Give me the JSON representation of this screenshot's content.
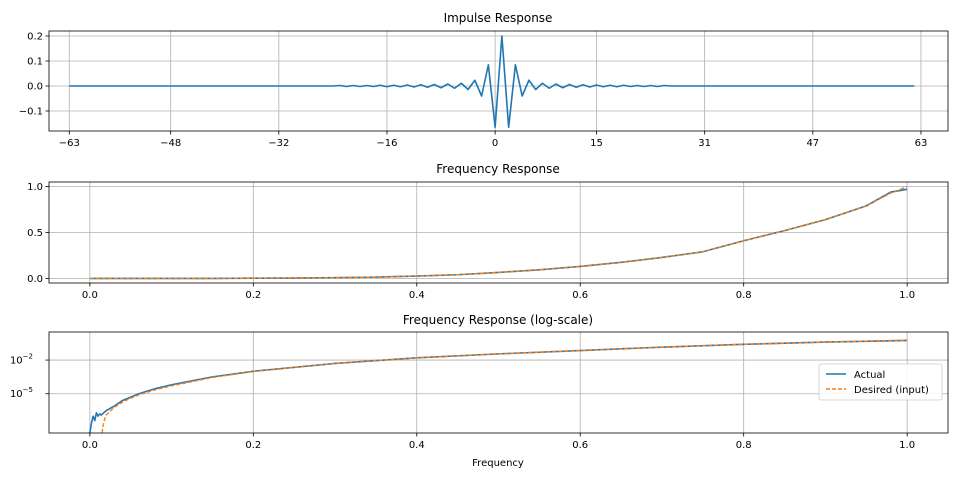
{
  "colors": {
    "actual": "#1f77b4",
    "desired": "#ff7f0e",
    "grid": "#b0b0b0"
  },
  "chart_data": [
    {
      "id": "impulse",
      "type": "line",
      "title": "Impulse Response",
      "xlabel": "",
      "ylabel": "",
      "xlim": [
        -66,
        67
      ],
      "ylim": [
        -0.18,
        0.22
      ],
      "xticks": [
        -63,
        -48,
        -32,
        -16,
        0,
        15,
        31,
        47,
        63
      ],
      "xtick_labels": [
        "−63",
        "−48",
        "−32",
        "−16",
        "0",
        "15",
        "31",
        "47",
        "63"
      ],
      "yticks": [
        0.2,
        0.1,
        0.0,
        -0.1
      ],
      "ytick_labels": [
        "0.2",
        "0.1",
        "0.0",
        "−0.1"
      ],
      "grid": true,
      "series": [
        {
          "color": "#1f77b4",
          "points": [
            [
              -63,
              0
            ],
            [
              -24,
              0
            ],
            [
              -23,
              0.002
            ],
            [
              -22,
              -0.002
            ],
            [
              -21,
              0.002
            ],
            [
              -20,
              -0.002
            ],
            [
              -19,
              0.002
            ],
            [
              -18,
              -0.002
            ],
            [
              -17,
              0.003
            ],
            [
              -16,
              -0.003
            ],
            [
              -15,
              0.003
            ],
            [
              -14,
              -0.003
            ],
            [
              -13,
              0.004
            ],
            [
              -12,
              -0.004
            ],
            [
              -11,
              0.005
            ],
            [
              -10,
              -0.005
            ],
            [
              -9,
              0.006
            ],
            [
              -8,
              -0.007
            ],
            [
              -7,
              0.008
            ],
            [
              -6,
              -0.009
            ],
            [
              -5,
              0.011
            ],
            [
              -4,
              -0.014
            ],
            [
              -3,
              0.023
            ],
            [
              -2,
              -0.04
            ],
            [
              -1,
              0.085
            ],
            [
              0,
              -0.165
            ],
            [
              1,
              0.2
            ],
            [
              2,
              -0.165
            ],
            [
              3,
              0.085
            ],
            [
              4,
              -0.04
            ],
            [
              5,
              0.023
            ],
            [
              6,
              -0.014
            ],
            [
              7,
              0.011
            ],
            [
              8,
              -0.009
            ],
            [
              9,
              0.008
            ],
            [
              10,
              -0.007
            ],
            [
              11,
              0.006
            ],
            [
              12,
              -0.005
            ],
            [
              13,
              0.005
            ],
            [
              14,
              -0.004
            ],
            [
              15,
              0.004
            ],
            [
              16,
              -0.003
            ],
            [
              17,
              0.003
            ],
            [
              18,
              -0.003
            ],
            [
              19,
              0.003
            ],
            [
              20,
              -0.002
            ],
            [
              21,
              0.002
            ],
            [
              22,
              -0.002
            ],
            [
              23,
              0.002
            ],
            [
              24,
              -0.002
            ],
            [
              25,
              0.002
            ],
            [
              26,
              0
            ],
            [
              62,
              0
            ]
          ]
        }
      ]
    },
    {
      "id": "freq",
      "type": "line",
      "title": "Frequency Response",
      "xlabel": "",
      "ylabel": "",
      "xlim": [
        -0.05,
        1.05
      ],
      "ylim": [
        -0.05,
        1.05
      ],
      "xticks": [
        0.0,
        0.2,
        0.4,
        0.6,
        0.8,
        1.0
      ],
      "xtick_labels": [
        "0.0",
        "0.2",
        "0.4",
        "0.6",
        "0.8",
        "1.0"
      ],
      "yticks": [
        1.0,
        0.5,
        0.0
      ],
      "ytick_labels": [
        "1.0",
        "0.5",
        "0.0"
      ],
      "grid": true,
      "series": [
        {
          "name": "Actual",
          "color": "#1f77b4",
          "dash": false,
          "x": [
            0.0,
            0.05,
            0.1,
            0.15,
            0.2,
            0.25,
            0.3,
            0.35,
            0.4,
            0.45,
            0.5,
            0.55,
            0.6,
            0.65,
            0.7,
            0.75,
            0.8,
            0.85,
            0.9,
            0.95,
            0.98,
            1.0
          ],
          "y": [
            0.0,
            0.0,
            0.0,
            0.0,
            0.002,
            0.004,
            0.008,
            0.014,
            0.026,
            0.04,
            0.065,
            0.094,
            0.13,
            0.175,
            0.228,
            0.29,
            0.41,
            0.52,
            0.64,
            0.79,
            0.94,
            0.97
          ]
        },
        {
          "name": "Desired (input)",
          "color": "#ff7f0e",
          "dash": true,
          "x": [
            0.0,
            0.05,
            0.1,
            0.15,
            0.2,
            0.25,
            0.3,
            0.35,
            0.4,
            0.45,
            0.5,
            0.55,
            0.6,
            0.65,
            0.7,
            0.75,
            0.8,
            0.85,
            0.9,
            0.95,
            0.98,
            1.0
          ],
          "y": [
            0.0,
            0.0,
            0.0,
            0.0,
            0.002,
            0.004,
            0.008,
            0.014,
            0.026,
            0.04,
            0.065,
            0.094,
            0.13,
            0.175,
            0.228,
            0.29,
            0.41,
            0.52,
            0.64,
            0.79,
            0.93,
            1.0
          ]
        }
      ]
    },
    {
      "id": "freqlog",
      "type": "line",
      "title": "Frequency Response (log-scale)",
      "xlabel": "Frequency",
      "ylabel": "",
      "yscale": "log",
      "xlim": [
        -0.05,
        1.05
      ],
      "ylim_log10": [
        -8.5,
        0.5
      ],
      "xticks": [
        0.0,
        0.2,
        0.4,
        0.6,
        0.8,
        1.0
      ],
      "xtick_labels": [
        "0.0",
        "0.2",
        "0.4",
        "0.6",
        "0.8",
        "1.0"
      ],
      "yticks_log10": [
        -2,
        -5
      ],
      "ytick_labels": [
        "10",
        "10"
      ],
      "ytick_exponents": [
        "−2",
        "−5"
      ],
      "grid": true,
      "legend": {
        "position": "right",
        "entries": [
          "Actual",
          "Desired (input)"
        ]
      },
      "series": [
        {
          "name": "Actual",
          "color": "#1f77b4",
          "dash": false,
          "log10_points": [
            [
              0.0,
              -8.5
            ],
            [
              0.002,
              -7.6
            ],
            [
              0.004,
              -7.0
            ],
            [
              0.006,
              -7.4
            ],
            [
              0.008,
              -6.7
            ],
            [
              0.01,
              -7.0
            ],
            [
              0.012,
              -6.8
            ],
            [
              0.014,
              -6.9
            ],
            [
              0.02,
              -6.5
            ],
            [
              0.03,
              -6.1
            ],
            [
              0.04,
              -5.6
            ],
            [
              0.05,
              -5.3
            ],
            [
              0.06,
              -5.0
            ],
            [
              0.08,
              -4.55
            ],
            [
              0.1,
              -4.2
            ],
            [
              0.15,
              -3.5
            ],
            [
              0.2,
              -3.0
            ],
            [
              0.3,
              -2.3
            ],
            [
              0.4,
              -1.8
            ],
            [
              0.5,
              -1.45
            ],
            [
              0.6,
              -1.15
            ],
            [
              0.7,
              -0.85
            ],
            [
              0.8,
              -0.6
            ],
            [
              0.9,
              -0.4
            ],
            [
              1.0,
              -0.25
            ]
          ]
        },
        {
          "name": "Desired (input)",
          "color": "#ff7f0e",
          "dash": true,
          "log10_points": [
            [
              0.015,
              -8.5
            ],
            [
              0.016,
              -7.9
            ],
            [
              0.018,
              -7.3
            ],
            [
              0.02,
              -6.9
            ],
            [
              0.03,
              -6.2
            ],
            [
              0.04,
              -5.75
            ],
            [
              0.05,
              -5.4
            ],
            [
              0.06,
              -5.1
            ],
            [
              0.08,
              -4.65
            ],
            [
              0.1,
              -4.3
            ],
            [
              0.15,
              -3.55
            ],
            [
              0.2,
              -3.02
            ],
            [
              0.3,
              -2.3
            ],
            [
              0.4,
              -1.8
            ],
            [
              0.5,
              -1.45
            ],
            [
              0.6,
              -1.15
            ],
            [
              0.7,
              -0.85
            ],
            [
              0.8,
              -0.6
            ],
            [
              0.9,
              -0.4
            ],
            [
              1.0,
              -0.22
            ]
          ]
        }
      ]
    }
  ]
}
